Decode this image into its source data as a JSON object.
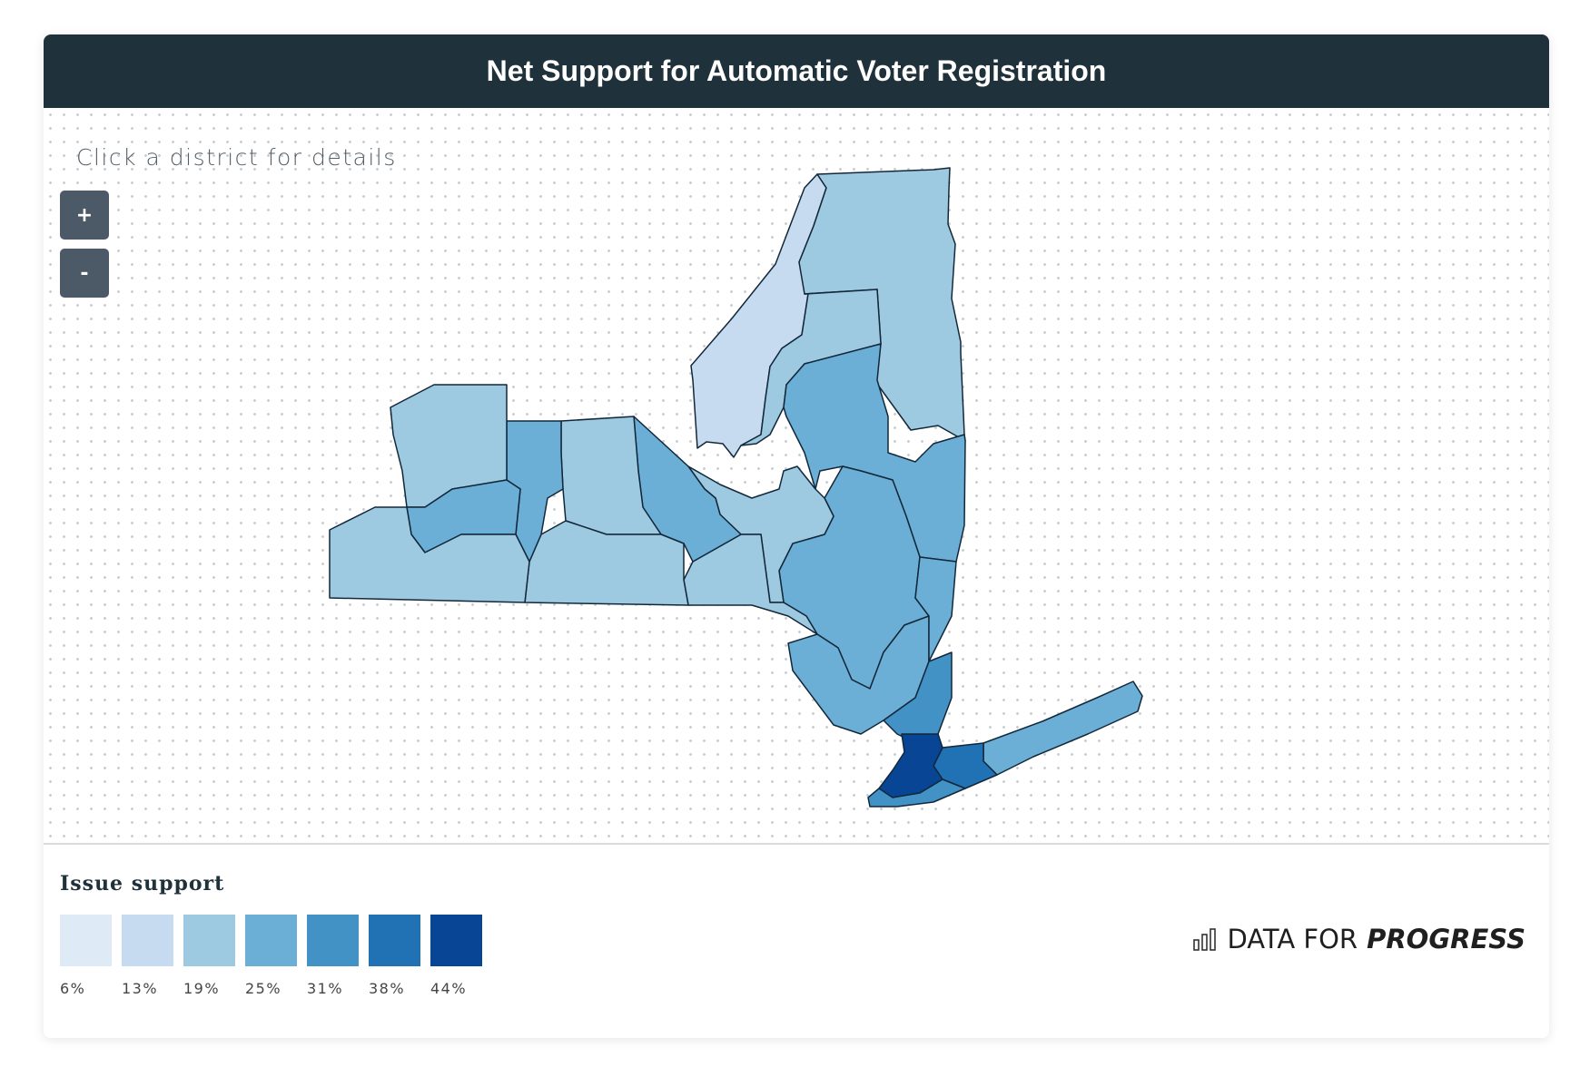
{
  "header": {
    "title": "Net Support for Automatic Voter Registration"
  },
  "map": {
    "hint": "Click a district for details",
    "zoom_in_label": "+",
    "zoom_out_label": "-",
    "border_color": "#12283a"
  },
  "legend": {
    "title": "Issue support",
    "bins": [
      {
        "label": "6%",
        "color": "#deebf7"
      },
      {
        "label": "13%",
        "color": "#c6dbef"
      },
      {
        "label": "19%",
        "color": "#9ecae1"
      },
      {
        "label": "25%",
        "color": "#6baed6"
      },
      {
        "label": "31%",
        "color": "#4292c6"
      },
      {
        "label": "38%",
        "color": "#2171b5"
      },
      {
        "label": "44%",
        "color": "#084594"
      }
    ]
  },
  "brand": {
    "word1": "DATA FOR",
    "word2": "PROGRESS",
    "icon": "bar-chart-icon"
  }
}
